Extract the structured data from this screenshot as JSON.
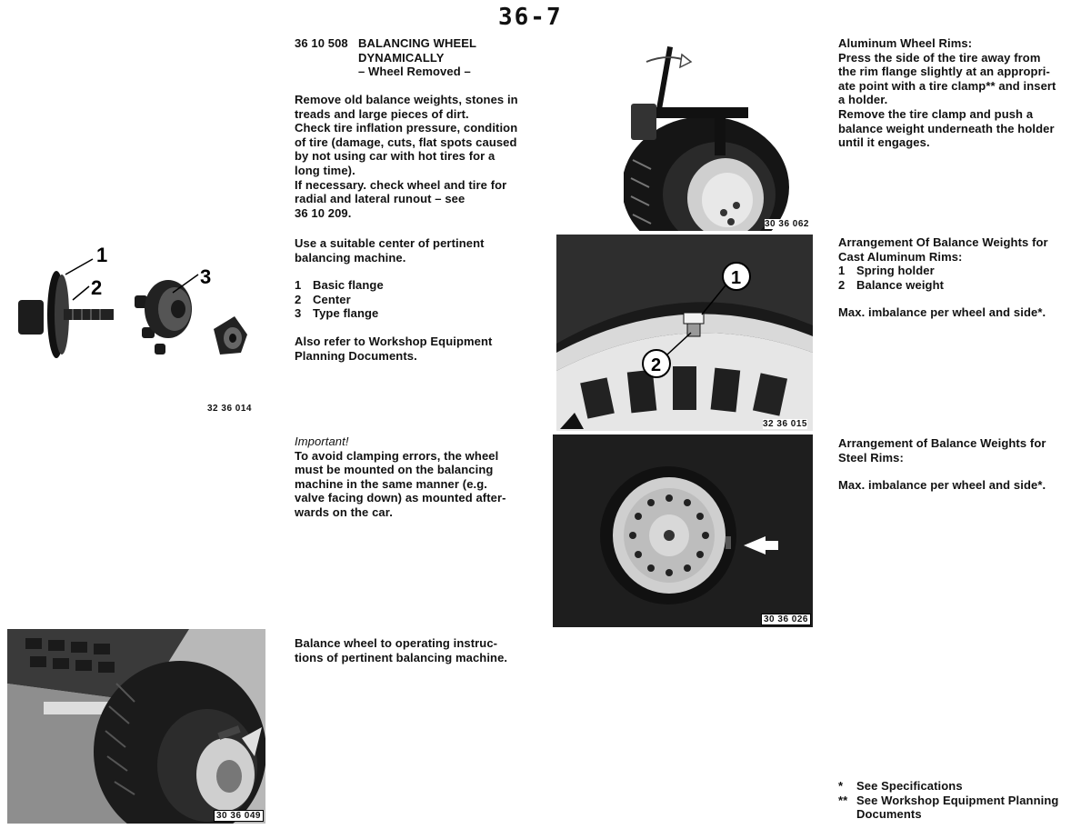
{
  "page_number": "36-7",
  "procedure": {
    "code": "36 10 508",
    "title_line1": "BALANCING WHEEL",
    "title_line2": "DYNAMICALLY",
    "subtitle": "– Wheel Removed –"
  },
  "middle_col": {
    "p1": [
      "Remove old balance weights, stones in",
      "treads and large pieces of dirt.",
      "Check tire inflation pressure, condition",
      "of tire (damage, cuts, flat spots caused",
      "by not using car with hot tires for a",
      "long time).",
      "If necessary. check wheel and tire for",
      "radial and lateral runout – see",
      "36 10 209."
    ],
    "p2": [
      "Use a suitable center of pertinent",
      "balancing machine."
    ],
    "parts": [
      {
        "num": "1",
        "label": "Basic flange"
      },
      {
        "num": "2",
        "label": "Center"
      },
      {
        "num": "3",
        "label": "Type flange"
      }
    ],
    "p3": [
      "Also refer to Workshop Equipment",
      "Planning Documents."
    ],
    "important_label": "Important!",
    "p4": [
      "To avoid clamping errors, the wheel",
      "must be mounted on the balancing",
      "machine in the same manner (e.g.",
      "valve facing down) as mounted after-",
      "wards on the car."
    ],
    "p5": [
      "Balance wheel to operating instruc-",
      "tions of pertinent balancing machine."
    ]
  },
  "right_col": {
    "alu_title": "Aluminum Wheel Rims:",
    "alu_text": [
      "Press the side of the tire away from",
      "the rim flange slightly at an appropri-",
      "ate point with a tire clamp** and insert",
      "a holder.",
      "Remove the tire clamp and push a",
      "balance weight underneath the holder",
      "until it engages."
    ],
    "cast_title": [
      "Arrangement Of Balance Weights for",
      "Cast Aluminum Rims:"
    ],
    "cast_items": [
      {
        "num": "1",
        "label": "Spring holder"
      },
      {
        "num": "2",
        "label": "Balance weight"
      }
    ],
    "cast_imbalance": "Max. imbalance per wheel and side*.",
    "steel_title": [
      "Arrangement of Balance Weights for",
      "Steel Rims:"
    ],
    "steel_imbalance": "Max. imbalance per wheel and side*."
  },
  "footnotes": [
    {
      "mark": "*",
      "lines": [
        "See Specifications"
      ]
    },
    {
      "mark": "**",
      "lines": [
        "See Workshop Equipment Planning",
        "Documents"
      ]
    }
  ],
  "figures": {
    "flanges": {
      "caption": "32 36 014",
      "callouts": [
        "1",
        "2",
        "3"
      ]
    },
    "tire_clamp": {
      "caption": "30 36 062"
    },
    "cast_rim": {
      "caption": "32 36 015",
      "callouts": [
        "1",
        "2"
      ]
    },
    "steel_rim": {
      "caption": "30 36 026"
    },
    "machine": {
      "caption": "30 36 049"
    }
  }
}
